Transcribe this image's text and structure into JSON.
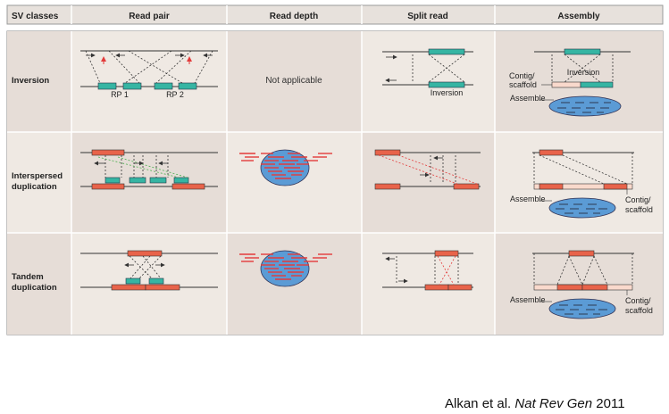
{
  "columns": [
    "SV classes",
    "Read pair",
    "Read depth",
    "Split read",
    "Assembly"
  ],
  "rows": [
    {
      "label_lines": [
        "Inversion"
      ]
    },
    {
      "label_lines": [
        "Interspersed",
        "duplication"
      ]
    },
    {
      "label_lines": [
        "Tandem",
        "duplication"
      ]
    }
  ],
  "labels": {
    "rp1": "RP 1",
    "rp2": "RP 2",
    "not_applicable": "Not applicable",
    "inversion": "Inversion",
    "contig_line1": "Contig/",
    "contig_line2": "scaffold",
    "assemble": "Assemble"
  },
  "citation": {
    "authors": "Alkan et al.",
    "journal": "Nat Rev Gen",
    "year": "2011"
  },
  "colors": {
    "frame_bg": "#e4dcd6",
    "cell_bg_a": "#e6ddd7",
    "cell_bg_b": "#efe9e3",
    "segment_red": "#e8634a",
    "segment_teal": "#36b5a3",
    "read_depth_blue": "#5b9bd5",
    "contig_fill": "#f9d9cc",
    "reads_red": "#e33b3b"
  }
}
